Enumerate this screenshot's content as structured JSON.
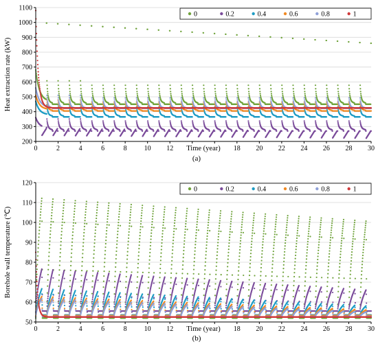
{
  "chart_data": [
    {
      "type": "scatter",
      "panel_label": "(a)",
      "xlabel": "Time (year)",
      "ylabel": "Heat extraction rate (kW)",
      "xlim": [
        0,
        30
      ],
      "ylim": [
        200,
        1100
      ],
      "xticks": [
        0,
        2,
        4,
        6,
        8,
        10,
        12,
        14,
        16,
        18,
        20,
        22,
        24,
        26,
        28,
        30
      ],
      "yticks": [
        200,
        300,
        400,
        500,
        600,
        700,
        800,
        900,
        1000,
        1100
      ],
      "grid": "horizontal",
      "legend_position": "top-right",
      "series": [
        {
          "name": "0",
          "color": "#70a33c",
          "steady": 470,
          "peak": 680,
          "trough": 430,
          "upper_start": 1000,
          "upper_end": 860
        },
        {
          "name": "0.2",
          "color": "#7a4b9a",
          "steady": 290,
          "peak": 360,
          "trough": 250,
          "lower_start": 300,
          "lower_end": 250
        },
        {
          "name": "0.4",
          "color": "#1e9cc4",
          "steady": 380,
          "peak": 470,
          "trough": 350
        },
        {
          "name": "0.6",
          "color": "#f08a24",
          "steady": 415,
          "peak": 510,
          "trough": 395
        },
        {
          "name": "0.8",
          "color": "#8ea0d8",
          "steady": 430,
          "peak": 560,
          "trough": 415
        },
        {
          "name": "1",
          "color": "#d0393a",
          "steady": 425,
          "peak": 1080,
          "trough": 420
        }
      ]
    },
    {
      "type": "scatter",
      "panel_label": "(b)",
      "xlabel": "Time (year)",
      "ylabel": "Borehole wall temperature (℃)",
      "xlim": [
        0,
        30
      ],
      "ylim": [
        50,
        120
      ],
      "xticks": [
        0,
        2,
        4,
        6,
        8,
        10,
        12,
        14,
        16,
        18,
        20,
        22,
        24,
        26,
        28,
        30
      ],
      "yticks": [
        50,
        60,
        70,
        80,
        90,
        100,
        110,
        120
      ],
      "grid": "horizontal",
      "legend_position": "top-right",
      "series": [
        {
          "name": "0",
          "color": "#70a33c",
          "steady": 52,
          "peak": 113,
          "peak_end": 101,
          "trough": 52
        },
        {
          "name": "0.2",
          "color": "#7a4b9a",
          "steady": 56,
          "peak": 77,
          "peak_end": 66,
          "trough": 55
        },
        {
          "name": "0.4",
          "color": "#1e9cc4",
          "steady": 54,
          "peak": 67,
          "peak_end": 58,
          "trough": 53
        },
        {
          "name": "0.6",
          "color": "#f08a24",
          "steady": 53.5,
          "peak": 63,
          "peak_end": 56,
          "trough": 53
        },
        {
          "name": "0.8",
          "color": "#8ea0d8",
          "steady": 53,
          "peak": 62,
          "peak_end": 55,
          "trough": 52.5
        },
        {
          "name": "1",
          "color": "#d0393a",
          "steady": 52.5,
          "peak": 85,
          "peak_end": 52,
          "trough": 52
        }
      ]
    }
  ]
}
